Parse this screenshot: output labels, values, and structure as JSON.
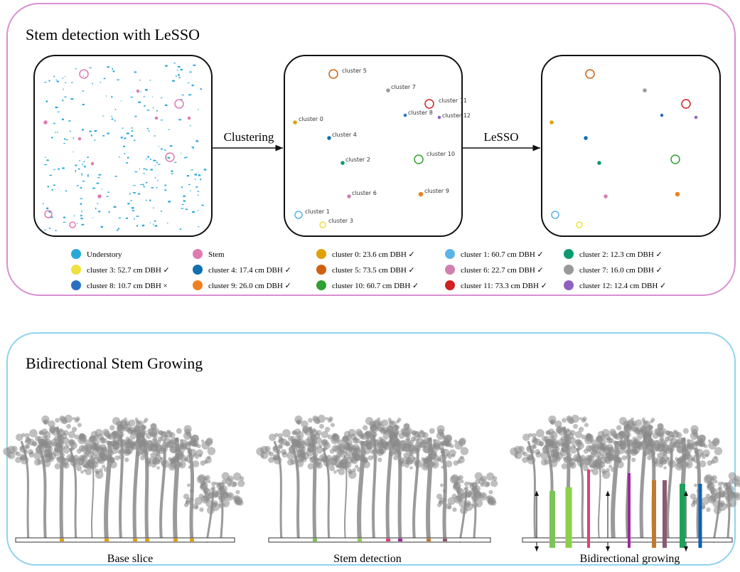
{
  "top_panel": {
    "title": "Stem detection with LeSSO",
    "arrow_1": "Clustering",
    "arrow_2": "LeSSO",
    "cluster_labels": [
      "cluster 5",
      "cluster 7",
      "cluster 11",
      "cluster 0",
      "cluster 8",
      "cluster 12",
      "cluster 4",
      "cluster 10",
      "cluster 2",
      "cluster 6",
      "cluster 9",
      "cluster 1",
      "cluster 3"
    ],
    "legend": [
      {
        "label": "Understory",
        "color": "#29a8d8"
      },
      {
        "label": "Stem",
        "color": "#e07ab0"
      },
      {
        "label": "cluster 0: 23.6 cm DBH ✓",
        "color": "#e0a000"
      },
      {
        "label": "cluster 1: 60.7 cm DBH ✓",
        "color": "#5ab4e8"
      },
      {
        "label": "cluster 2: 12.3 cm DBH ✓",
        "color": "#0a9a70"
      },
      {
        "label": "cluster 3: 52.7 cm DBH ✓",
        "color": "#f0e040"
      },
      {
        "label": "cluster 4: 17.4 cm DBH ✓",
        "color": "#1070b0"
      },
      {
        "label": "cluster 5: 73.5 cm DBH ✓",
        "color": "#d06010"
      },
      {
        "label": "cluster 6: 22.7 cm DBH ✓",
        "color": "#d080b0"
      },
      {
        "label": "cluster 7: 16.0 cm DBH ✓",
        "color": "#999999"
      },
      {
        "label": "cluster 8: 10.7 cm DBH ×",
        "color": "#2a70c0"
      },
      {
        "label": "cluster 9: 26.0 cm DBH ✓",
        "color": "#f08020"
      },
      {
        "label": "cluster 10: 60.7 cm DBH ✓",
        "color": "#30a030"
      },
      {
        "label": "cluster  11: 73.3 cm DBH ✓",
        "color": "#d02020"
      },
      {
        "label": "cluster 12: 12.4 cm DBH ✓",
        "color": "#9060c0"
      }
    ]
  },
  "bottom_panel": {
    "title": "Bidirectional Stem Growing",
    "captions": [
      "Base slice",
      "Stem detection",
      "Bidirectional growing"
    ]
  }
}
